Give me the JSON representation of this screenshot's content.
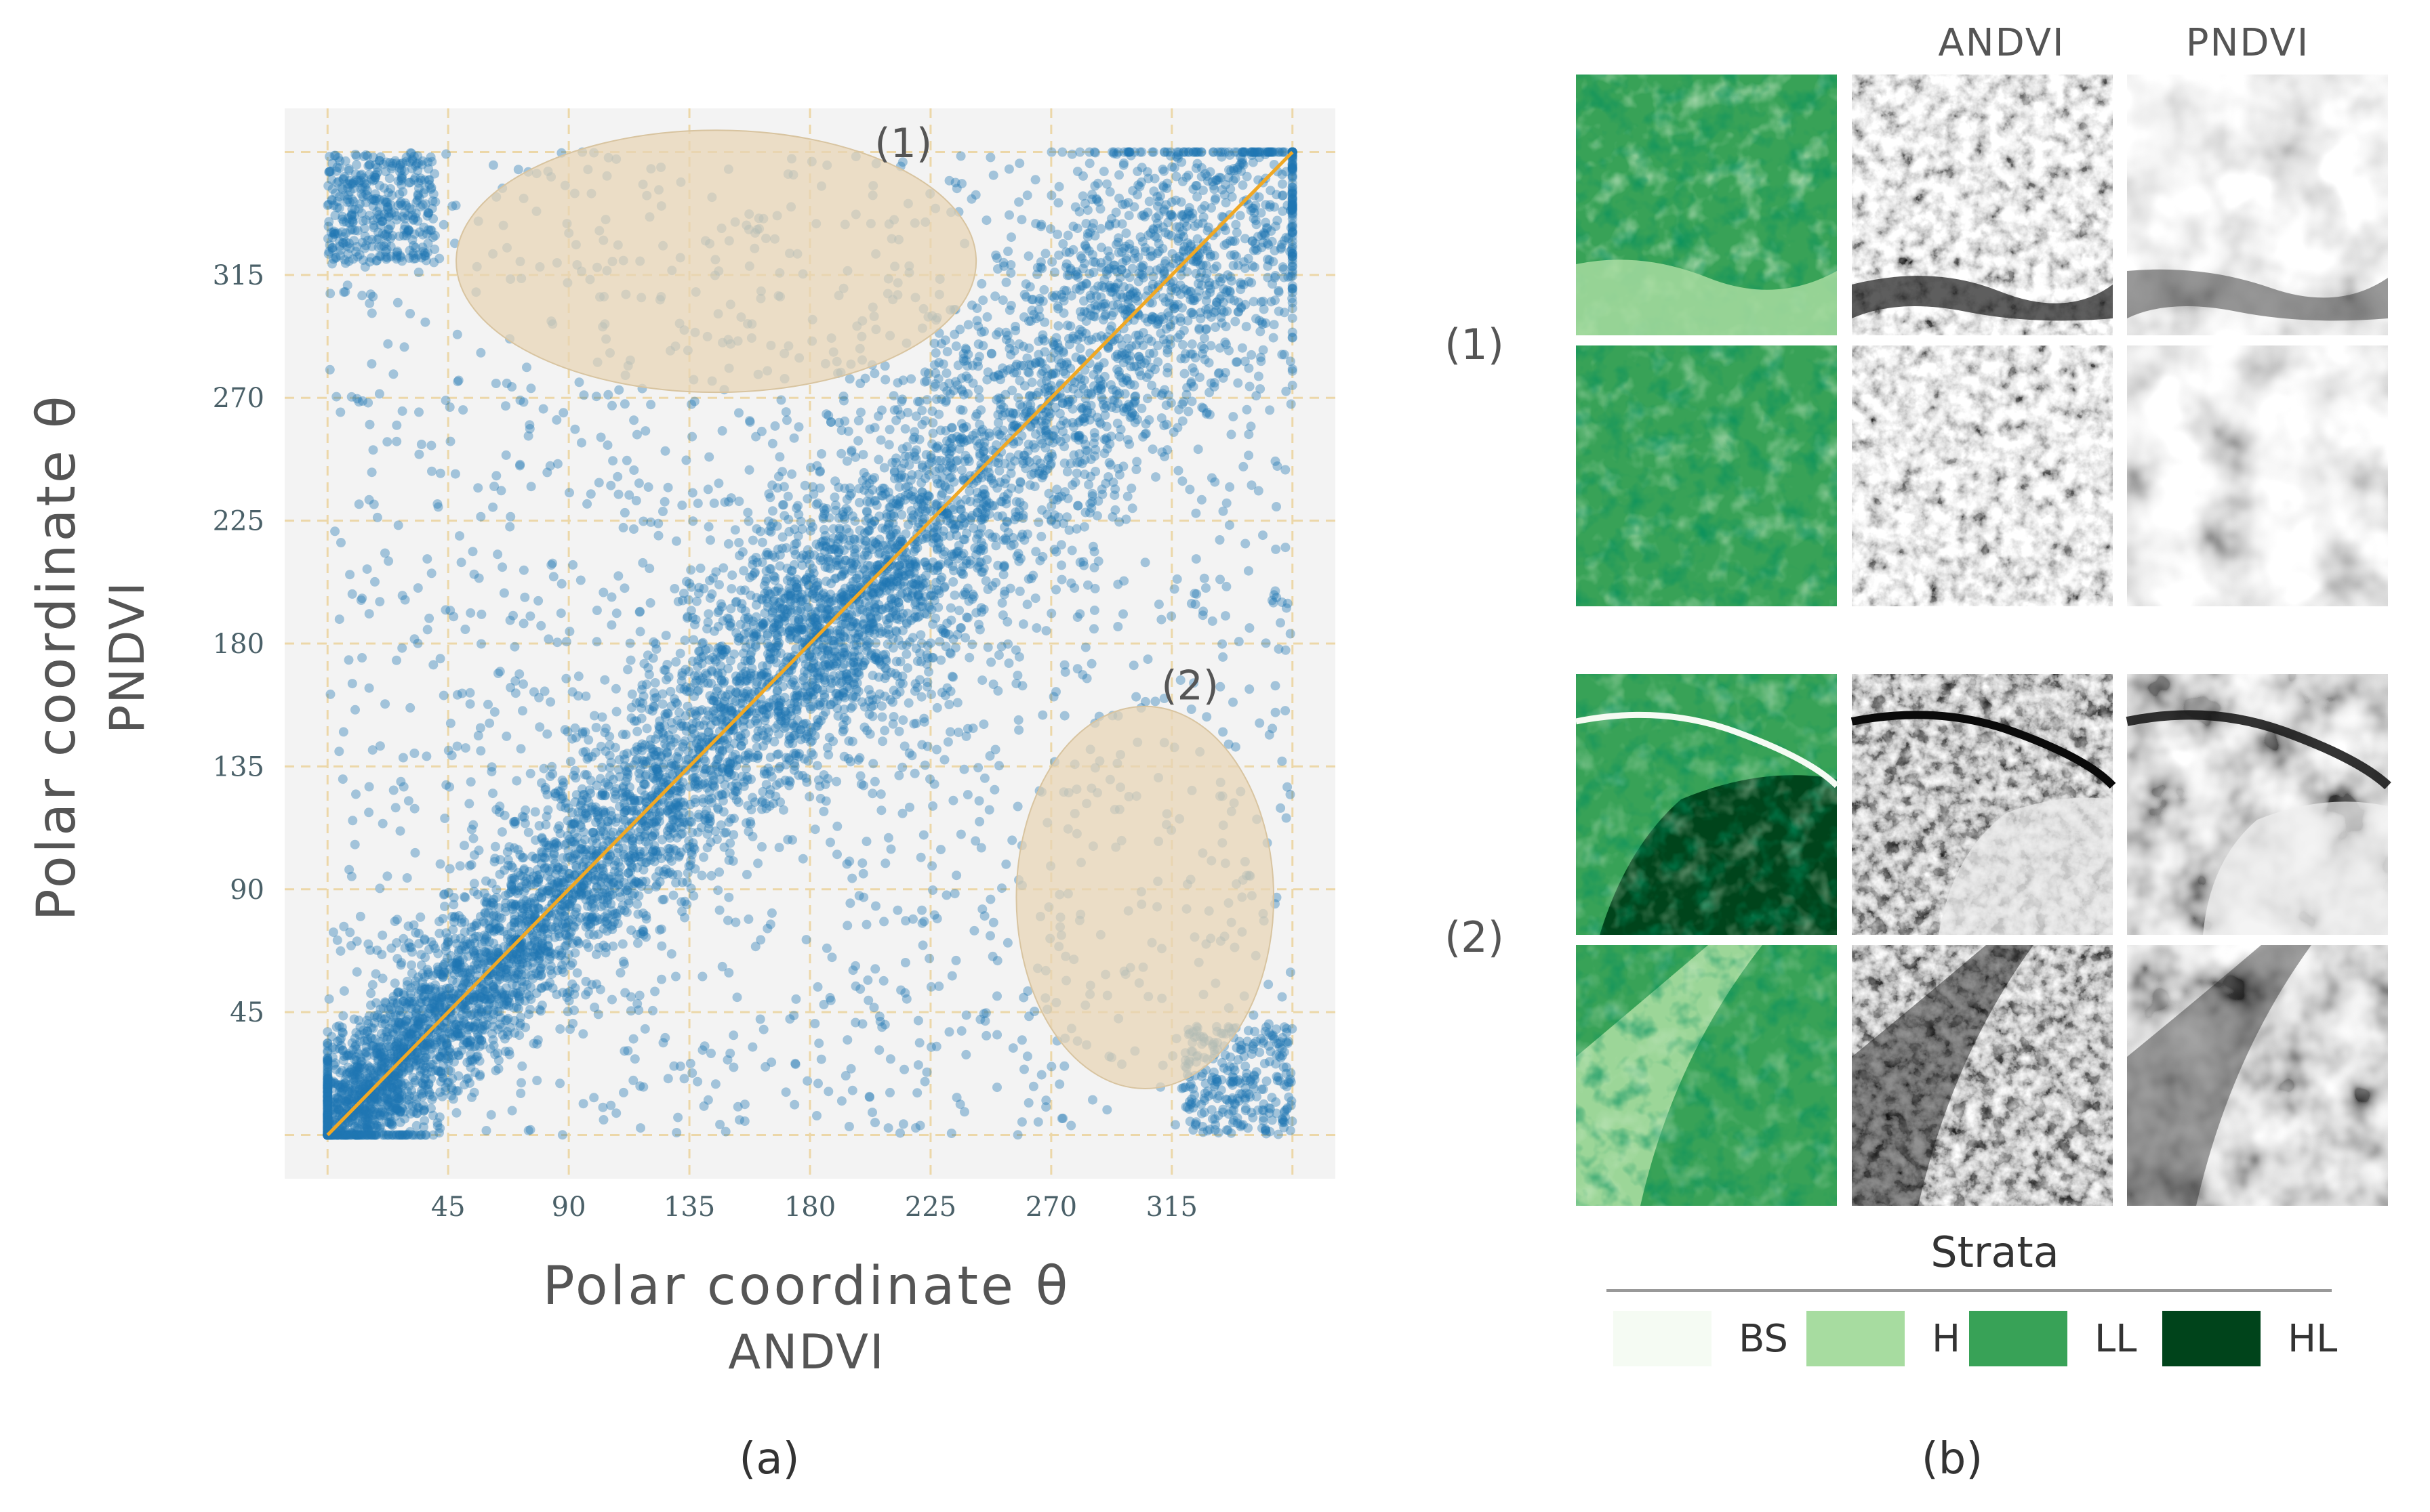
{
  "chart_data": {
    "type": "scatter",
    "xlabel_line1": "Polar coordinate  θ",
    "xlabel_line2": "ANDVI",
    "ylabel_line1": "Polar coordinate  θ",
    "ylabel_line2": "PNDVI",
    "xticks": [
      45,
      90,
      135,
      180,
      225,
      270,
      315
    ],
    "yticks": [
      45,
      90,
      135,
      180,
      225,
      270,
      315
    ],
    "xlim": [
      -16,
      376
    ],
    "ylim": [
      -16,
      376
    ],
    "grid": true,
    "n_points": 9000,
    "point_color": "#1f77b4",
    "fit_line": {
      "x": [
        0,
        360
      ],
      "y": [
        0,
        360
      ],
      "color": "#f0a824"
    },
    "regions": [
      {
        "label": "(1)",
        "cx": 145,
        "cy": 320,
        "rx": 97,
        "ry": 48
      },
      {
        "label": "(2)",
        "cx": 305,
        "cy": 87,
        "rx": 48,
        "ry": 70
      }
    ],
    "region_color": "#e7d4b4",
    "caption": "(a)"
  },
  "panel_b": {
    "column_titles": [
      "ANDVI",
      "PNDVI"
    ],
    "group_labels": [
      "(1)",
      "(2)"
    ],
    "caption": "(b)",
    "legend_title": "Strata",
    "legend": [
      {
        "label": "BS",
        "color": "#f5fbf3"
      },
      {
        "label": "H",
        "color": "#a7dca0"
      },
      {
        "label": "LL",
        "color": "#38a257"
      },
      {
        "label": "HL",
        "color": "#00441b"
      }
    ]
  }
}
